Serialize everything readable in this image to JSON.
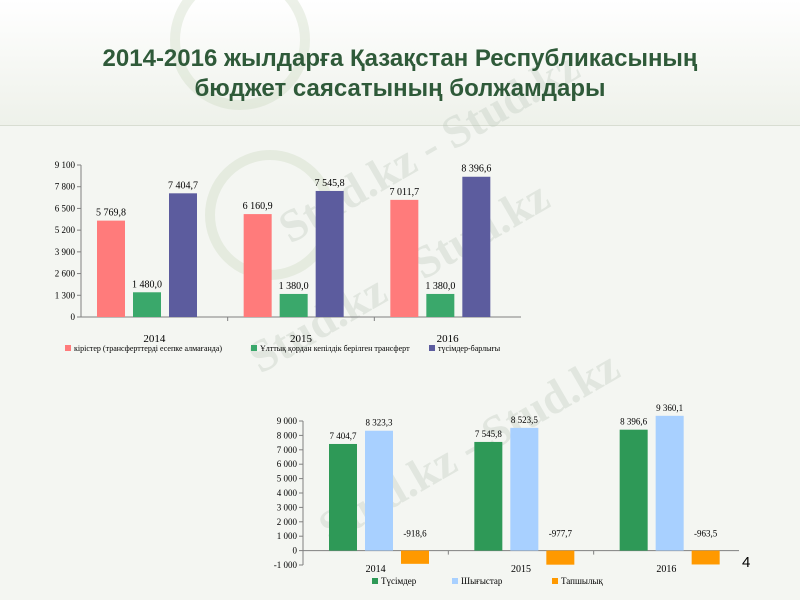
{
  "slide": {
    "title_line1": "2014-2016 жылдарға Қазақстан Республикасының",
    "title_line2": "бюджет саясатының болжамдары",
    "page_number": "4",
    "watermark": "Stud.kz - Stud.kz"
  },
  "chart_data": [
    {
      "type": "bar",
      "categories": [
        "2014",
        "2015",
        "2016"
      ],
      "series": [
        {
          "name": "кірістер (трансферттерді есепке алмағанда)",
          "color": "#ff7b7b",
          "values": [
            5769.8,
            6160.9,
            7011.7
          ],
          "labels": [
            "5 769,8",
            "6 160,9",
            "7 011,7"
          ]
        },
        {
          "name": "Ұлттық қордан кепілдік берілген трансферт",
          "color": "#3aa86b",
          "values": [
            1480.0,
            1380.0,
            1380.0
          ],
          "labels": [
            "1 480,0",
            "1 380,0",
            "1 380,0"
          ]
        },
        {
          "name": "түсімдер-барлығы",
          "color": "#5c5c9e",
          "values": [
            7404.7,
            7545.8,
            8396.6
          ],
          "labels": [
            "7 404,7",
            "7 545,8",
            "8 396,6"
          ]
        }
      ],
      "yticks": [
        "0",
        "1 300",
        "2 600",
        "3 900",
        "5 200",
        "6 500",
        "7 800",
        "9 100"
      ],
      "ylim": [
        0,
        9100
      ],
      "grid": false,
      "legend": "bottom"
    },
    {
      "type": "bar",
      "categories": [
        "2014",
        "2015",
        "2016"
      ],
      "series": [
        {
          "name": "Түсімдер",
          "color": "#2e9957",
          "values": [
            7404.7,
            7545.8,
            8396.6
          ],
          "labels": [
            "7 404,7",
            "7 545,8",
            "8 396,6"
          ]
        },
        {
          "name": "Шығыстар",
          "color": "#a8d0ff",
          "values": [
            8323.3,
            8523.5,
            9360.1
          ],
          "labels": [
            "8 323,3",
            "8 523,5",
            "9 360,1"
          ]
        },
        {
          "name": "Тапшылық",
          "color": "#ff9900",
          "values": [
            -918.6,
            -977.7,
            -963.5
          ],
          "labels": [
            "-918,6",
            "-977,7",
            "-963,5"
          ]
        }
      ],
      "yticks": [
        "-1 000",
        "0",
        "1 000",
        "2 000",
        "3 000",
        "4 000",
        "5 000",
        "6 000",
        "7 000",
        "8 000",
        "9 000"
      ],
      "ylim": [
        -1000,
        9000
      ],
      "grid": false,
      "legend": "bottom"
    }
  ]
}
